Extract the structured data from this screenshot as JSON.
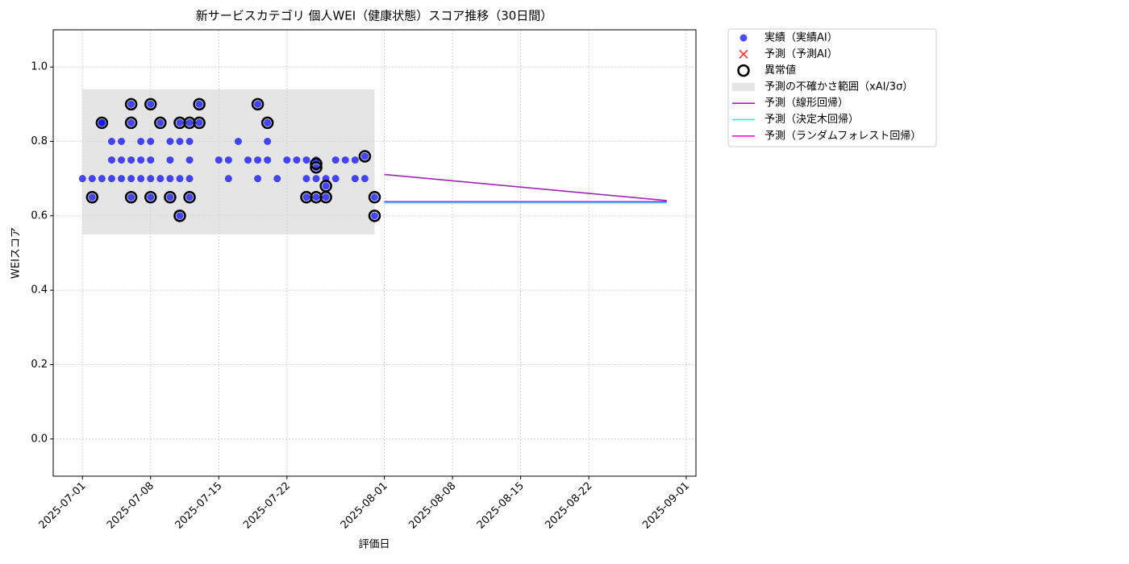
{
  "chart_data": {
    "type": "scatter",
    "title": "新サービスカテゴリ 個人WEI（健康状態）スコア推移（30日間）",
    "xlabel": "評価日",
    "ylabel": "WEIスコア",
    "xlim": [
      "2025-06-28",
      "2025-09-02"
    ],
    "xticks": [
      "2025-07-01",
      "2025-07-08",
      "2025-07-15",
      "2025-07-22",
      "2025-08-01",
      "2025-08-08",
      "2025-08-15",
      "2025-08-22",
      "2025-09-01"
    ],
    "ylim": [
      -0.1,
      1.1
    ],
    "yticks": [
      {
        "value": 0,
        "label": "0.0"
      },
      0.2,
      0.4,
      0.6,
      0.8,
      {
        "value": 1,
        "label": "1.0"
      }
    ],
    "grid": true,
    "legend": "outside upper right",
    "band": {
      "name": "予測の不確かさ範囲（xAI/3σ）",
      "color": "#d3d3d3",
      "x": [
        "2025-07-01",
        "2025-07-31"
      ],
      "lower": [
        0.55,
        0.55
      ],
      "upper": [
        0.94,
        0.94
      ]
    },
    "series": [
      {
        "name": "実績（実績AI）",
        "color": "#0000ff",
        "marker": "dot",
        "x": [
          "2025-07-01",
          "2025-07-02",
          "2025-07-02",
          "2025-07-03",
          "2025-07-03",
          "2025-07-03",
          "2025-07-04",
          "2025-07-04",
          "2025-07-04",
          "2025-07-05",
          "2025-07-05",
          "2025-07-05",
          "2025-07-06",
          "2025-07-06",
          "2025-07-06",
          "2025-07-06",
          "2025-07-06",
          "2025-07-07",
          "2025-07-07",
          "2025-07-07",
          "2025-07-08",
          "2025-07-08",
          "2025-07-08",
          "2025-07-08",
          "2025-07-08",
          "2025-07-09",
          "2025-07-09",
          "2025-07-10",
          "2025-07-10",
          "2025-07-10",
          "2025-07-10",
          "2025-07-11",
          "2025-07-11",
          "2025-07-11",
          "2025-07-11",
          "2025-07-12",
          "2025-07-12",
          "2025-07-12",
          "2025-07-12",
          "2025-07-12",
          "2025-07-13",
          "2025-07-13",
          "2025-07-15",
          "2025-07-16",
          "2025-07-16",
          "2025-07-17",
          "2025-07-18",
          "2025-07-19",
          "2025-07-19",
          "2025-07-19",
          "2025-07-20",
          "2025-07-20",
          "2025-07-20",
          "2025-07-21",
          "2025-07-22",
          "2025-07-23",
          "2025-07-24",
          "2025-07-24",
          "2025-07-24",
          "2025-07-25",
          "2025-07-25",
          "2025-07-25",
          "2025-07-25",
          "2025-07-26",
          "2025-07-26",
          "2025-07-26",
          "2025-07-27",
          "2025-07-27",
          "2025-07-28",
          "2025-07-29",
          "2025-07-29",
          "2025-07-30",
          "2025-07-30",
          "2025-07-31",
          "2025-07-31"
        ],
        "values": [
          0.7,
          0.65,
          0.7,
          0.85,
          0.85,
          0.7,
          0.7,
          0.8,
          0.75,
          0.7,
          0.8,
          0.75,
          0.65,
          0.75,
          0.7,
          0.85,
          0.9,
          0.75,
          0.7,
          0.8,
          0.9,
          0.8,
          0.75,
          0.65,
          0.7,
          0.85,
          0.7,
          0.8,
          0.75,
          0.65,
          0.7,
          0.85,
          0.8,
          0.6,
          0.7,
          0.8,
          0.85,
          0.75,
          0.65,
          0.7,
          0.85,
          0.9,
          0.75,
          0.75,
          0.7,
          0.8,
          0.75,
          0.9,
          0.75,
          0.7,
          0.8,
          0.85,
          0.75,
          0.7,
          0.75,
          0.75,
          0.65,
          0.7,
          0.75,
          0.75,
          0.73,
          0.7,
          0.65,
          0.65,
          0.7,
          0.68,
          0.7,
          0.75,
          0.75,
          0.7,
          0.75,
          0.7,
          0.76,
          0.6,
          0.65
        ]
      },
      {
        "name": "予測（予測AI）",
        "color": "#ff0000",
        "marker": "x",
        "x": [],
        "values": []
      },
      {
        "name": "異常値",
        "color": "#000000",
        "marker": "ring",
        "x": [
          "2025-07-02",
          "2025-07-03",
          "2025-07-06",
          "2025-07-06",
          "2025-07-06",
          "2025-07-08",
          "2025-07-08",
          "2025-07-09",
          "2025-07-10",
          "2025-07-11",
          "2025-07-11",
          "2025-07-12",
          "2025-07-12",
          "2025-07-13",
          "2025-07-13",
          "2025-07-19",
          "2025-07-20",
          "2025-07-24",
          "2025-07-25",
          "2025-07-25",
          "2025-07-25",
          "2025-07-26",
          "2025-07-26",
          "2025-07-30",
          "2025-07-31",
          "2025-07-31"
        ],
        "values": [
          0.65,
          0.85,
          0.65,
          0.85,
          0.9,
          0.9,
          0.65,
          0.85,
          0.65,
          0.85,
          0.6,
          0.85,
          0.65,
          0.85,
          0.9,
          0.9,
          0.85,
          0.65,
          0.74,
          0.73,
          0.65,
          0.65,
          0.68,
          0.76,
          0.6,
          0.65
        ]
      },
      {
        "name": "予測（線形回帰）",
        "color": "#9c27b0",
        "marker": "line",
        "x": [
          "2025-08-01",
          "2025-08-30"
        ],
        "values": [
          0.711,
          0.641
        ]
      },
      {
        "name": "予測（決定木回帰）",
        "color": "#00ffff",
        "marker": "line",
        "x": [
          "2025-08-01",
          "2025-08-30"
        ],
        "values": [
          0.635,
          0.635
        ]
      },
      {
        "name": "予測（ランダムフォレスト回帰）",
        "color": "#ff00ff",
        "marker": "line",
        "x": [
          "2025-08-01",
          "2025-08-30"
        ],
        "values": [
          0.638,
          0.638
        ]
      }
    ]
  }
}
